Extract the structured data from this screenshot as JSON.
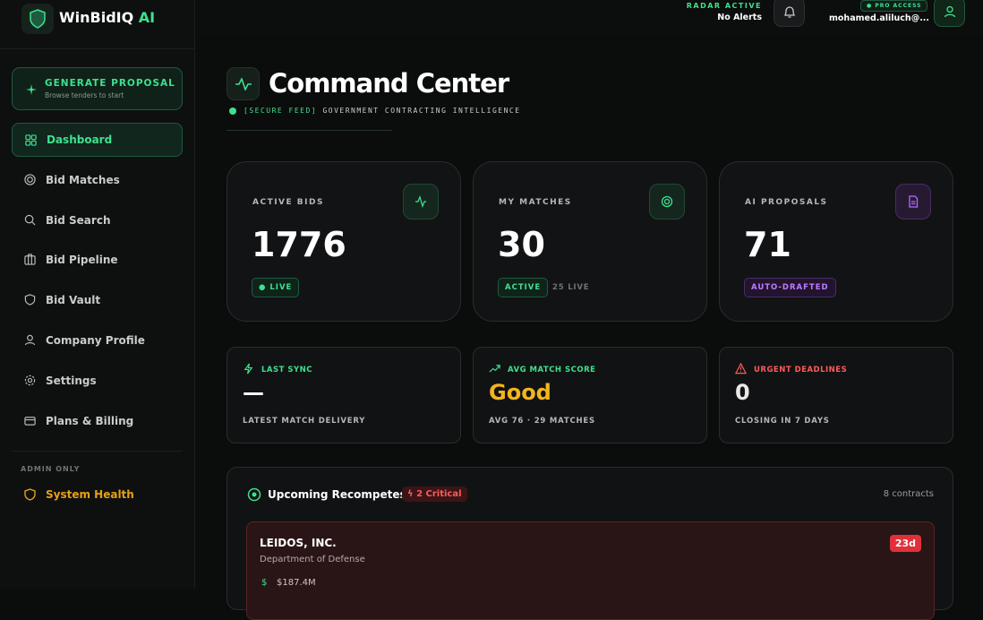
{
  "brand": {
    "name": "WinBidIQ",
    "suffix": "AI"
  },
  "sidebar": {
    "cta": {
      "title": "GENERATE PROPOSAL",
      "subtitle": "Browse tenders to start"
    },
    "nav": [
      "Dashboard",
      "Bid Matches",
      "Bid Search",
      "Bid Pipeline",
      "Bid Vault",
      "Company Profile",
      "Settings",
      "Plans & Billing"
    ],
    "admin_label": "ADMIN ONLY",
    "admin_item": "System Health"
  },
  "topbar": {
    "radar_label": "RADAR ACTIVE",
    "radar_status": "No Alerts",
    "plan": "PRO ACCESS",
    "user": "mohamed.aliluch@..."
  },
  "header": {
    "title": "Command Center",
    "tag": "[SECURE FEED]",
    "subtitle": "GOVERNMENT CONTRACTING INTELLIGENCE"
  },
  "stats": [
    {
      "label": "ACTIVE BIDS",
      "value": 1776,
      "badge": "LIVE"
    },
    {
      "label": "MY MATCHES",
      "value": 30,
      "badge": "ACTIVE",
      "note": "25 LIVE"
    },
    {
      "label": "AI PROPOSALS",
      "value": 71,
      "badge": "AUTO-DRAFTED"
    }
  ],
  "metrics": [
    {
      "label": "LAST SYNC",
      "value": "—",
      "note": "LATEST MATCH DELIVERY"
    },
    {
      "label": "AVG MATCH SCORE",
      "value": "Good",
      "note": "AVG 76 · 29 MATCHES"
    },
    {
      "label": "URGENT DEADLINES",
      "value": 0,
      "note": "CLOSING IN 7 DAYS"
    }
  ],
  "recompetes": {
    "title": "Upcoming Recompetes",
    "badge": "2 Critical",
    "count": "8 contracts",
    "items": [
      {
        "company": "LEIDOS, INC.",
        "agency": "Department of Defense",
        "days": "23d",
        "amount": "$187.4M"
      }
    ]
  }
}
